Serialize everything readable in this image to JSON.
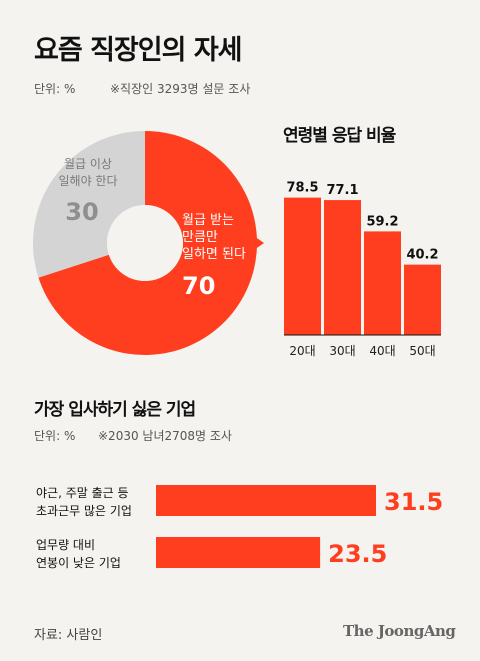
{
  "header": {
    "title": "요즘 직장인의 자세",
    "unit": "단위: %",
    "note": "※직장인 3293명 설문 조사"
  },
  "chart_data": [
    {
      "type": "pie",
      "slices": [
        {
          "label": "월급 받는 만큼만 일하면 된다",
          "label_lines": [
            "월급 받는",
            "만큼만",
            "일하면 된다"
          ],
          "value": 70,
          "color": "#ff3d1f"
        },
        {
          "label": "월급 이상 일해야 한다",
          "label_lines": [
            "월급 이상",
            "일해야 한다"
          ],
          "value": 30,
          "color": "#d4d4d4"
        }
      ]
    },
    {
      "type": "bar",
      "title": "연령별 응답 비율",
      "categories": [
        "20대",
        "30대",
        "40대",
        "50대"
      ],
      "values": [
        78.5,
        77.1,
        59.2,
        40.2
      ],
      "ylim": [
        0,
        100
      ],
      "color": "#ff3d1f"
    },
    {
      "type": "bar",
      "title": "가장 입사하기 싫은 기업",
      "unit": "단위: %",
      "note": "※2030 남녀2708명 조사",
      "orientation": "horizontal",
      "categories": [
        "야근, 주말 출근 등 초과근무 많은 기업",
        "업무량 대비 연봉이 낮은 기업"
      ],
      "category_lines": [
        [
          "야근, 주말 출근 등",
          "초과근무 많은 기업"
        ],
        [
          "업무량 대비",
          "연봉이 낮은 기업"
        ]
      ],
      "values": [
        31.5,
        23.5
      ],
      "color": "#ff3d1f"
    }
  ],
  "footer": {
    "source": "자료: 사람인",
    "brand": "The JoongAng"
  }
}
